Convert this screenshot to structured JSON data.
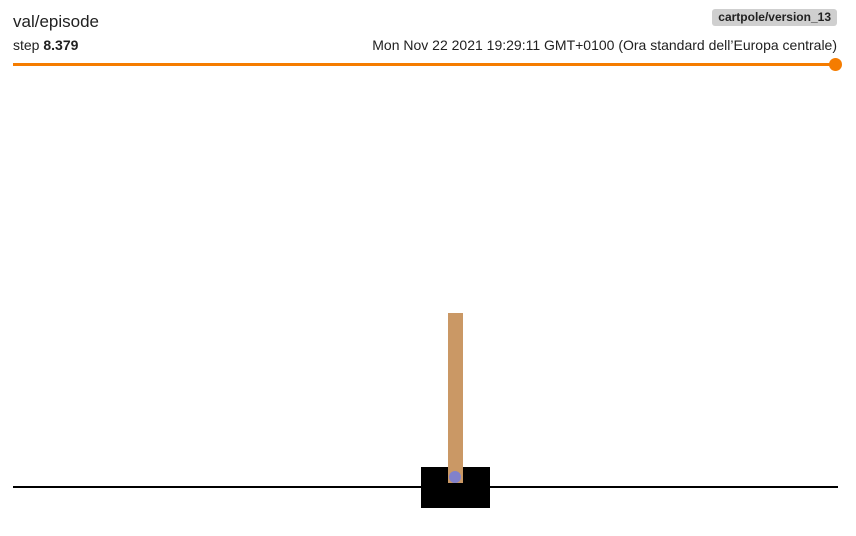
{
  "card": {
    "tag": "val/episode",
    "step_label": "step",
    "step_value": "8.379",
    "run": "cartpole/version_13",
    "timestamp": "Mon Nov 22 2021 19:29:11 GMT+0100 (Ora standard dell’Europa centrale)"
  },
  "slider": {
    "accent_color": "#f57c00",
    "position_fraction": 1.0
  },
  "frame": {
    "track_color": "#000000",
    "cart_color": "#000000",
    "pole_color": "#ca9865",
    "axle_color": "#8181cb"
  }
}
